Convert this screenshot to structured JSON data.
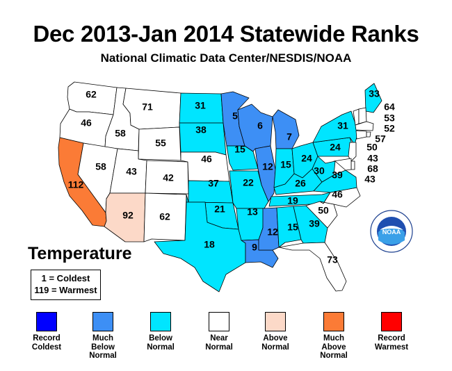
{
  "title": "Dec 2013-Jan 2014 Statewide Ranks",
  "subtitle": "National Climatic Data Center/NESDIS/NOAA",
  "legend": {
    "title": "Temperature",
    "key_line1": "1 = Coldest",
    "key_line2": "119 = Warmest",
    "categories": [
      {
        "label": "Record\nColdest",
        "color": "#0000ff"
      },
      {
        "label": "Much\nBelow\nNormal",
        "color": "#3d8ff5"
      },
      {
        "label": "Below\nNormal",
        "color": "#00e5ff"
      },
      {
        "label": "Near\nNormal",
        "color": "#ffffff"
      },
      {
        "label": "Above\nNormal",
        "color": "#fcd9c8"
      },
      {
        "label": "Much\nAbove\nNormal",
        "color": "#fb7b36"
      },
      {
        "label": "Record\nWarmest",
        "color": "#ff0000"
      }
    ]
  },
  "logo": {
    "text": "NOAA",
    "icon": "noaa-logo-icon"
  },
  "states": [
    {
      "name": "Washington",
      "rank": 62,
      "category": "Near Normal"
    },
    {
      "name": "Oregon",
      "rank": 46,
      "category": "Near Normal"
    },
    {
      "name": "California",
      "rank": 112,
      "category": "Much Above Normal"
    },
    {
      "name": "Idaho",
      "rank": 58,
      "category": "Near Normal"
    },
    {
      "name": "Nevada",
      "rank": 58,
      "category": "Near Normal"
    },
    {
      "name": "Montana",
      "rank": 71,
      "category": "Near Normal"
    },
    {
      "name": "Wyoming",
      "rank": 55,
      "category": "Near Normal"
    },
    {
      "name": "Utah",
      "rank": 43,
      "category": "Near Normal"
    },
    {
      "name": "Colorado",
      "rank": 42,
      "category": "Near Normal"
    },
    {
      "name": "Arizona",
      "rank": 92,
      "category": "Above Normal"
    },
    {
      "name": "New Mexico",
      "rank": 62,
      "category": "Near Normal"
    },
    {
      "name": "North Dakota",
      "rank": 31,
      "category": "Below Normal"
    },
    {
      "name": "South Dakota",
      "rank": 38,
      "category": "Below Normal"
    },
    {
      "name": "Nebraska",
      "rank": 46,
      "category": "Near Normal"
    },
    {
      "name": "Kansas",
      "rank": 37,
      "category": "Below Normal"
    },
    {
      "name": "Oklahoma",
      "rank": 21,
      "category": "Below Normal"
    },
    {
      "name": "Texas",
      "rank": 18,
      "category": "Below Normal"
    },
    {
      "name": "Minnesota",
      "rank": 5,
      "category": "Much Below Normal"
    },
    {
      "name": "Iowa",
      "rank": 15,
      "category": "Below Normal"
    },
    {
      "name": "Missouri",
      "rank": 22,
      "category": "Below Normal"
    },
    {
      "name": "Arkansas",
      "rank": 13,
      "category": "Below Normal"
    },
    {
      "name": "Louisiana",
      "rank": 9,
      "category": "Much Below Normal"
    },
    {
      "name": "Wisconsin",
      "rank": 6,
      "category": "Much Below Normal"
    },
    {
      "name": "Illinois",
      "rank": 12,
      "category": "Much Below Normal"
    },
    {
      "name": "Michigan",
      "rank": 7,
      "category": "Much Below Normal"
    },
    {
      "name": "Indiana",
      "rank": 15,
      "category": "Below Normal"
    },
    {
      "name": "Ohio",
      "rank": 24,
      "category": "Below Normal"
    },
    {
      "name": "Kentucky",
      "rank": 26,
      "category": "Below Normal"
    },
    {
      "name": "Tennessee",
      "rank": 19,
      "category": "Below Normal"
    },
    {
      "name": "Mississippi",
      "rank": 12,
      "category": "Much Below Normal"
    },
    {
      "name": "Alabama",
      "rank": 15,
      "category": "Below Normal"
    },
    {
      "name": "Georgia",
      "rank": 39,
      "category": "Below Normal"
    },
    {
      "name": "Florida",
      "rank": 73,
      "category": "Near Normal"
    },
    {
      "name": "South Carolina",
      "rank": 50,
      "category": "Near Normal"
    },
    {
      "name": "North Carolina",
      "rank": 46,
      "category": "Near Normal"
    },
    {
      "name": "Virginia",
      "rank": 39,
      "category": "Below Normal"
    },
    {
      "name": "West Virginia",
      "rank": 30,
      "category": "Below Normal"
    },
    {
      "name": "Pennsylvania",
      "rank": 24,
      "category": "Below Normal"
    },
    {
      "name": "New York",
      "rank": 31,
      "category": "Below Normal"
    },
    {
      "name": "Maine",
      "rank": 33,
      "category": "Below Normal"
    },
    {
      "name": "Vermont",
      "rank": 64,
      "category": "Near Normal"
    },
    {
      "name": "New Hampshire",
      "rank": 53,
      "category": "Near Normal"
    },
    {
      "name": "Massachusetts",
      "rank": 52,
      "category": "Near Normal"
    },
    {
      "name": "Rhode Island",
      "rank": 57,
      "category": "Near Normal"
    },
    {
      "name": "Connecticut",
      "rank": 50,
      "category": "Near Normal"
    },
    {
      "name": "New Jersey",
      "rank": 43,
      "category": "Near Normal"
    },
    {
      "name": "Delaware",
      "rank": 68,
      "category": "Near Normal"
    },
    {
      "name": "Maryland",
      "rank": 43,
      "category": "Near Normal"
    }
  ]
}
